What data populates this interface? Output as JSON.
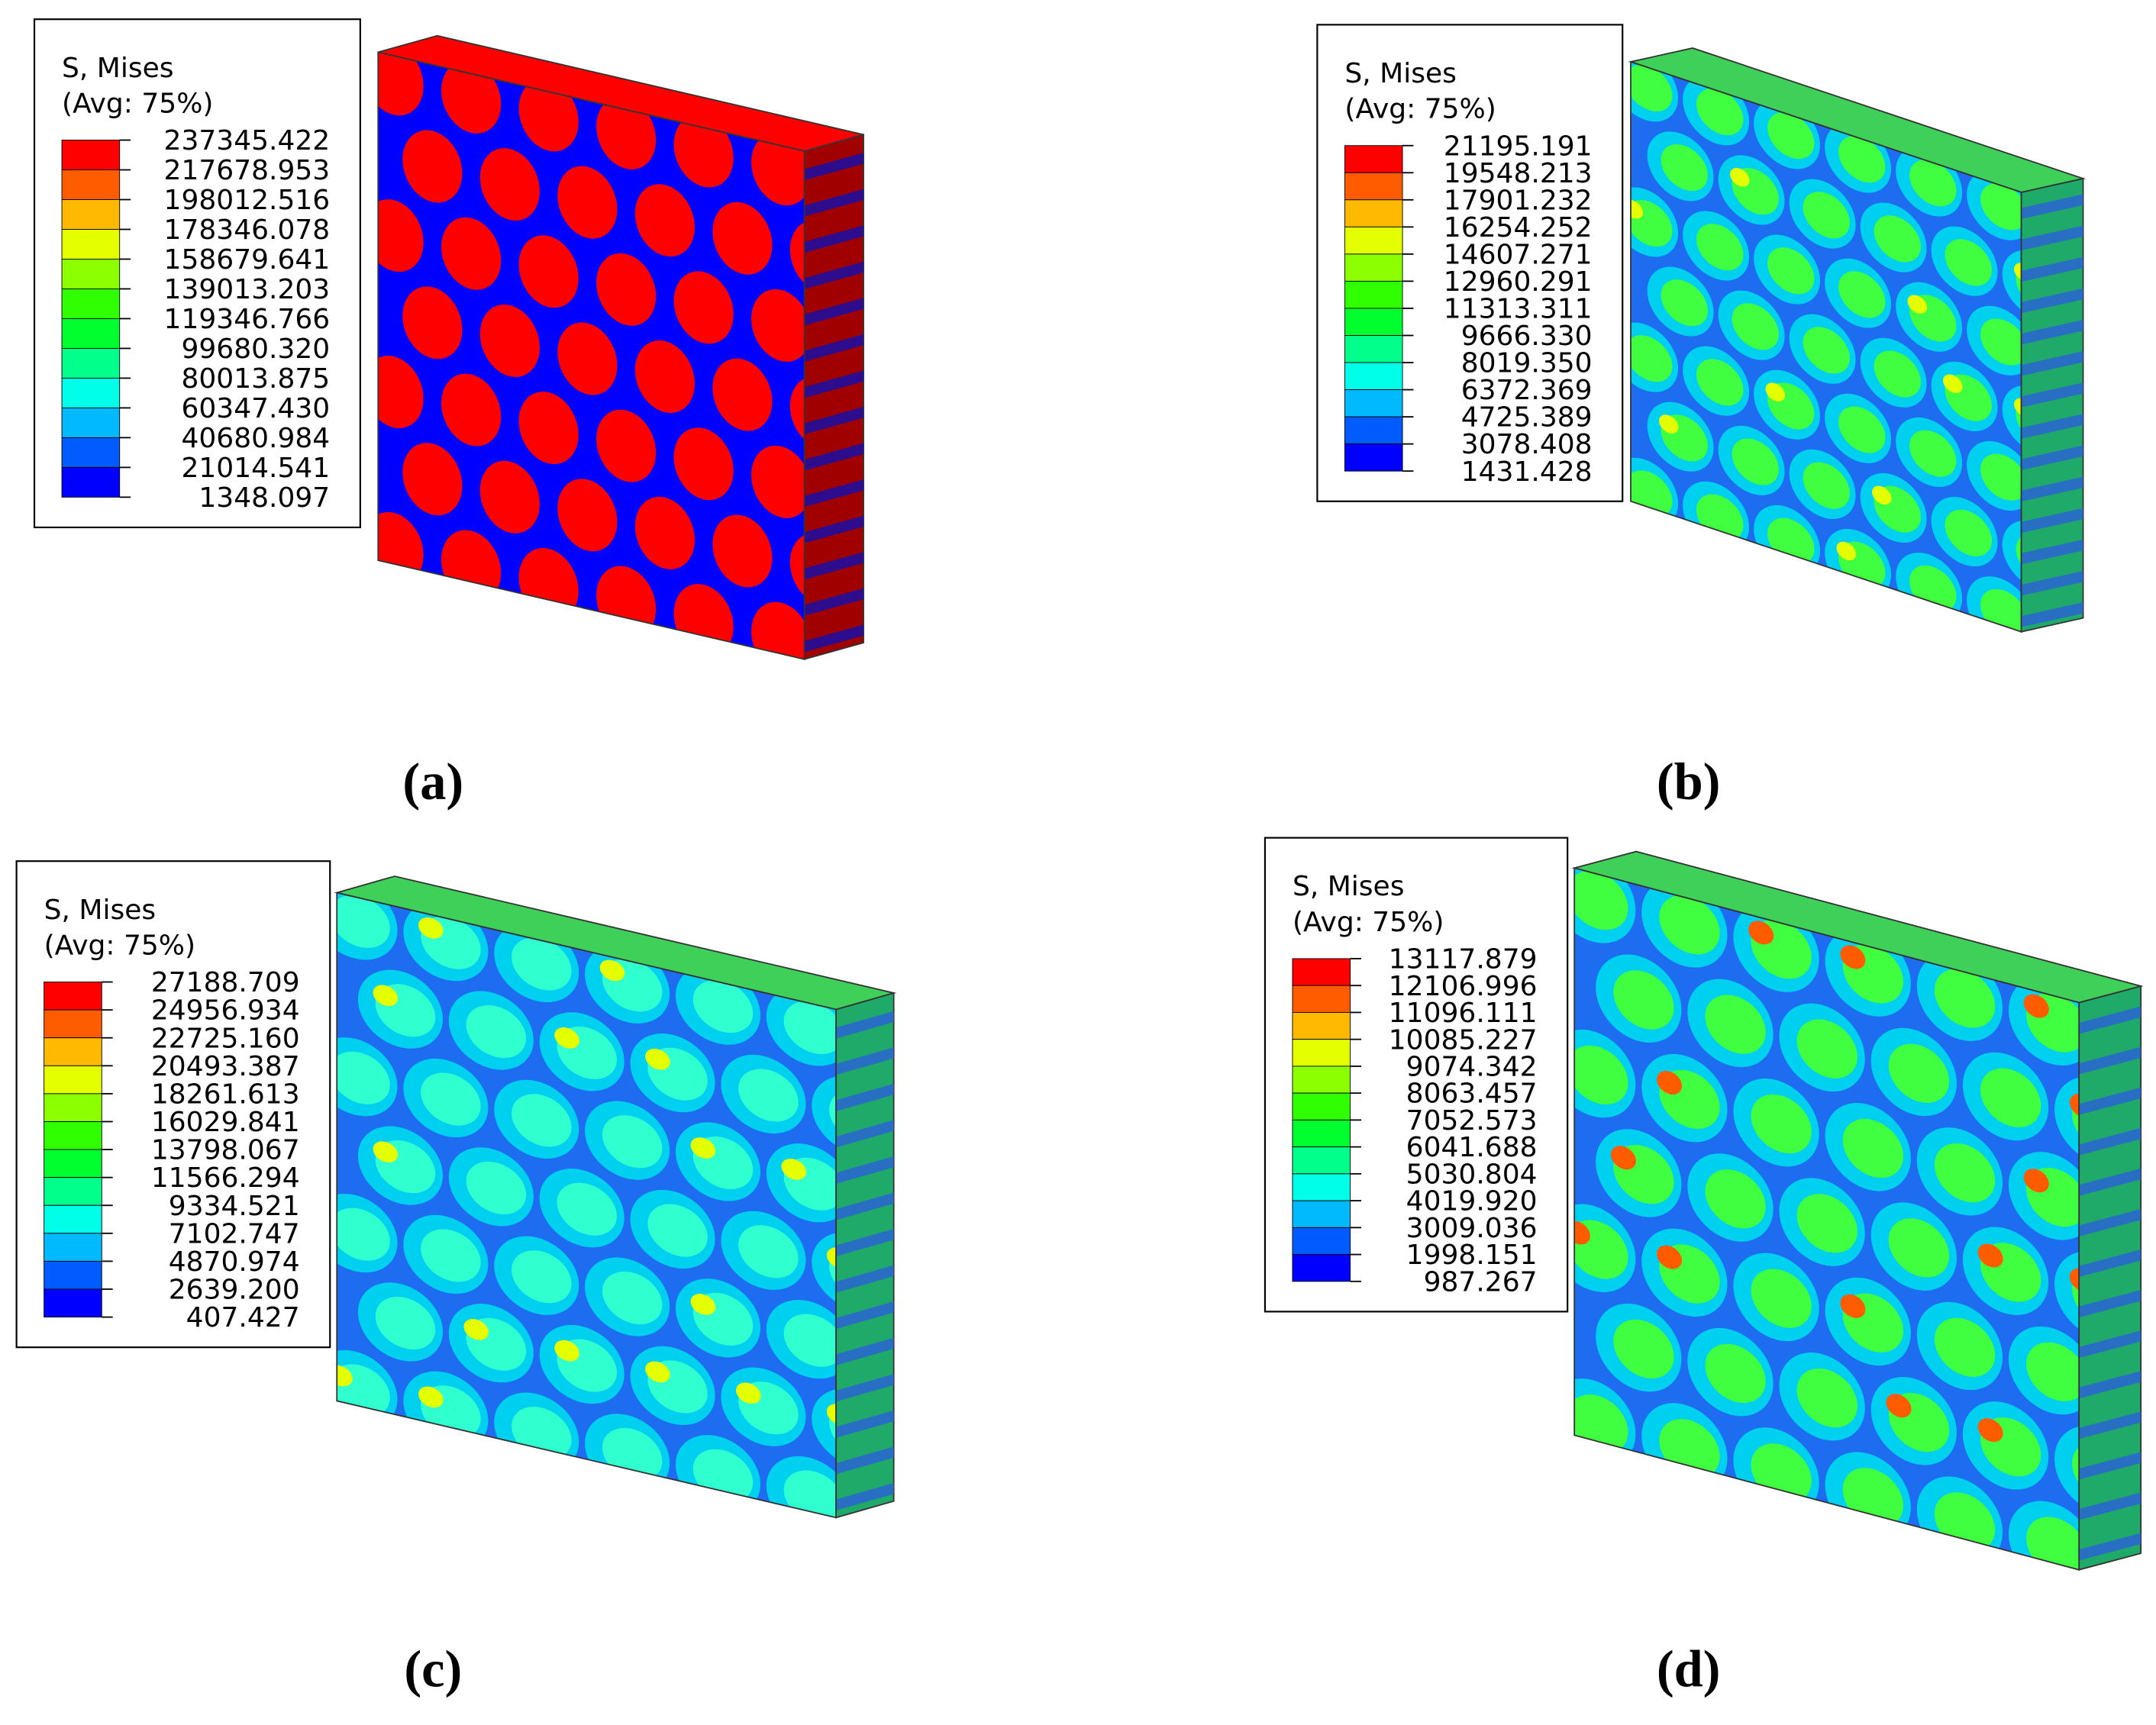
{
  "panels": [
    {
      "legend": {
        "title": "S, Mises",
        "subtitle": "(Avg: 75%)",
        "levels": [
          "237345.422",
          "217678.953",
          "198012.516",
          "178346.078",
          "158679.641",
          "139013.203",
          "119346.766",
          "99680.320",
          "80013.875",
          "60347.430",
          "40680.984",
          "21014.541",
          "1348.097"
        ]
      },
      "caption": "(a)"
    },
    {
      "legend": {
        "title": "S, Mises",
        "subtitle": "(Avg: 75%)",
        "levels": [
          "21195.191",
          "19548.213",
          "17901.232",
          "16254.252",
          "14607.271",
          "12960.291",
          "11313.311",
          "9666.330",
          "8019.350",
          "6372.369",
          "4725.389",
          "3078.408",
          "1431.428"
        ]
      },
      "caption": "(b)"
    },
    {
      "legend": {
        "title": "S, Mises",
        "subtitle": "(Avg: 75%)",
        "levels": [
          "27188.709",
          "24956.934",
          "22725.160",
          "20493.387",
          "18261.613",
          "16029.841",
          "13798.067",
          "11566.294",
          "9334.521",
          "7102.747",
          "4870.974",
          "2639.200",
          "407.427"
        ]
      },
      "caption": "(c)"
    },
    {
      "legend": {
        "title": "S, Mises",
        "subtitle": "(Avg: 75%)",
        "levels": [
          "13117.879",
          "12106.996",
          "11096.111",
          "10085.227",
          "9074.342",
          "8063.457",
          "7052.573",
          "6041.688",
          "5030.804",
          "4019.920",
          "3009.036",
          "1998.151",
          "987.267"
        ]
      },
      "caption": "(d)"
    }
  ]
}
